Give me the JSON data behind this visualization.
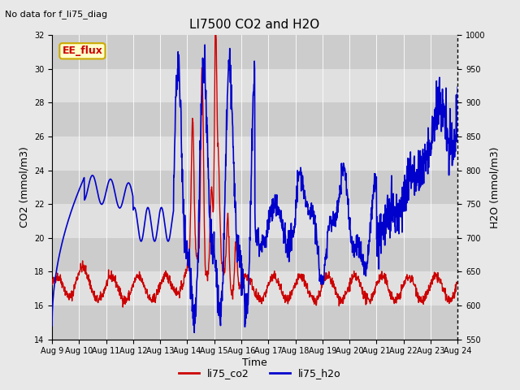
{
  "title": "LI7500 CO2 and H2O",
  "top_left_text": "No data for f_li75_diag",
  "xlabel": "Time",
  "ylabel_left": "CO2 (mmol/m3)",
  "ylabel_right": "H2O (mmol/m3)",
  "ylim_left": [
    14,
    32
  ],
  "ylim_right": [
    550,
    1000
  ],
  "yticks_left": [
    14,
    16,
    18,
    20,
    22,
    24,
    26,
    28,
    30,
    32
  ],
  "yticks_right": [
    550,
    600,
    650,
    700,
    750,
    800,
    850,
    900,
    950,
    1000
  ],
  "xtick_labels": [
    "Aug 9",
    "Aug 10",
    "Aug 11",
    "Aug 12",
    "Aug 13",
    "Aug 14",
    "Aug 15",
    "Aug 16",
    "Aug 17",
    "Aug 18",
    "Aug 19",
    "Aug 20",
    "Aug 21",
    "Aug 22",
    "Aug 23",
    "Aug 24"
  ],
  "n_days": 15,
  "color_co2": "#cc0000",
  "color_h2o": "#0000cc",
  "bg_color": "#e8e8e8",
  "plot_bg": "#e0e0e0",
  "band_color_dark": "#cccccc",
  "band_color_light": "#e0e0e0",
  "ee_flux_bg": "#ffffcc",
  "ee_flux_border": "#ccaa00",
  "ee_flux_text": "#cc0000",
  "legend_co2": "li75_co2",
  "legend_h2o": "li75_h2o"
}
